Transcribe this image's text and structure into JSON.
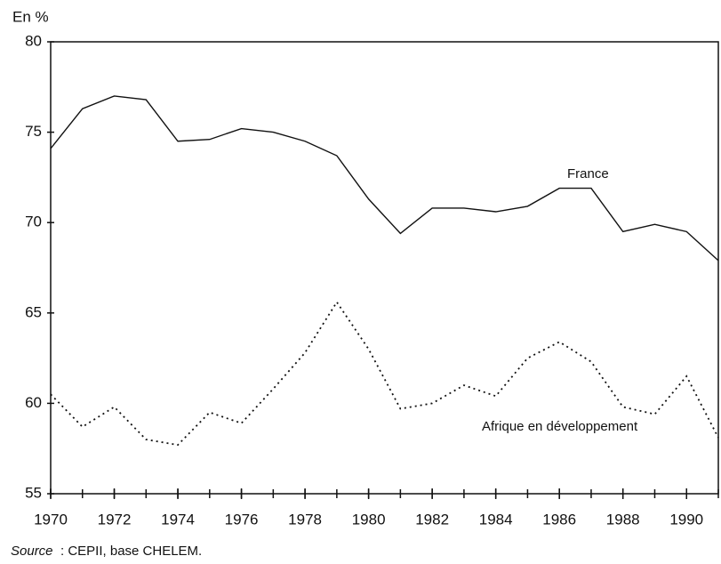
{
  "chart_data": {
    "type": "line",
    "y_label": "En %",
    "x": [
      1970,
      1971,
      1972,
      1973,
      1974,
      1975,
      1976,
      1977,
      1978,
      1979,
      1980,
      1981,
      1982,
      1983,
      1984,
      1985,
      1986,
      1987,
      1988,
      1989,
      1990,
      1991
    ],
    "series": [
      {
        "name": "France",
        "color": "#111111",
        "dash": "solid",
        "values": [
          74.1,
          76.3,
          77.0,
          76.8,
          74.5,
          74.6,
          75.2,
          75.0,
          74.5,
          73.7,
          71.3,
          69.4,
          70.8,
          70.8,
          70.6,
          70.9,
          71.9,
          71.9,
          69.5,
          69.9,
          69.5,
          67.9
        ]
      },
      {
        "name": "Afrique en développement",
        "color": "#111111",
        "dash": "dotted",
        "values": [
          60.5,
          58.7,
          59.8,
          58.0,
          57.7,
          59.5,
          58.9,
          60.8,
          62.8,
          65.6,
          63.0,
          59.7,
          60.0,
          61.0,
          60.4,
          62.5,
          63.4,
          62.3,
          59.8,
          59.4,
          61.5,
          58.1
        ]
      }
    ],
    "xlim": [
      1970,
      1991
    ],
    "xticks": [
      1970,
      1972,
      1974,
      1976,
      1978,
      1980,
      1982,
      1984,
      1986,
      1988,
      1990
    ],
    "ylim": [
      55,
      80
    ],
    "yticks": [
      55,
      60,
      65,
      70,
      75,
      80
    ],
    "source_label": "Source",
    "source_text": ": CEPII, base CHELEM."
  }
}
